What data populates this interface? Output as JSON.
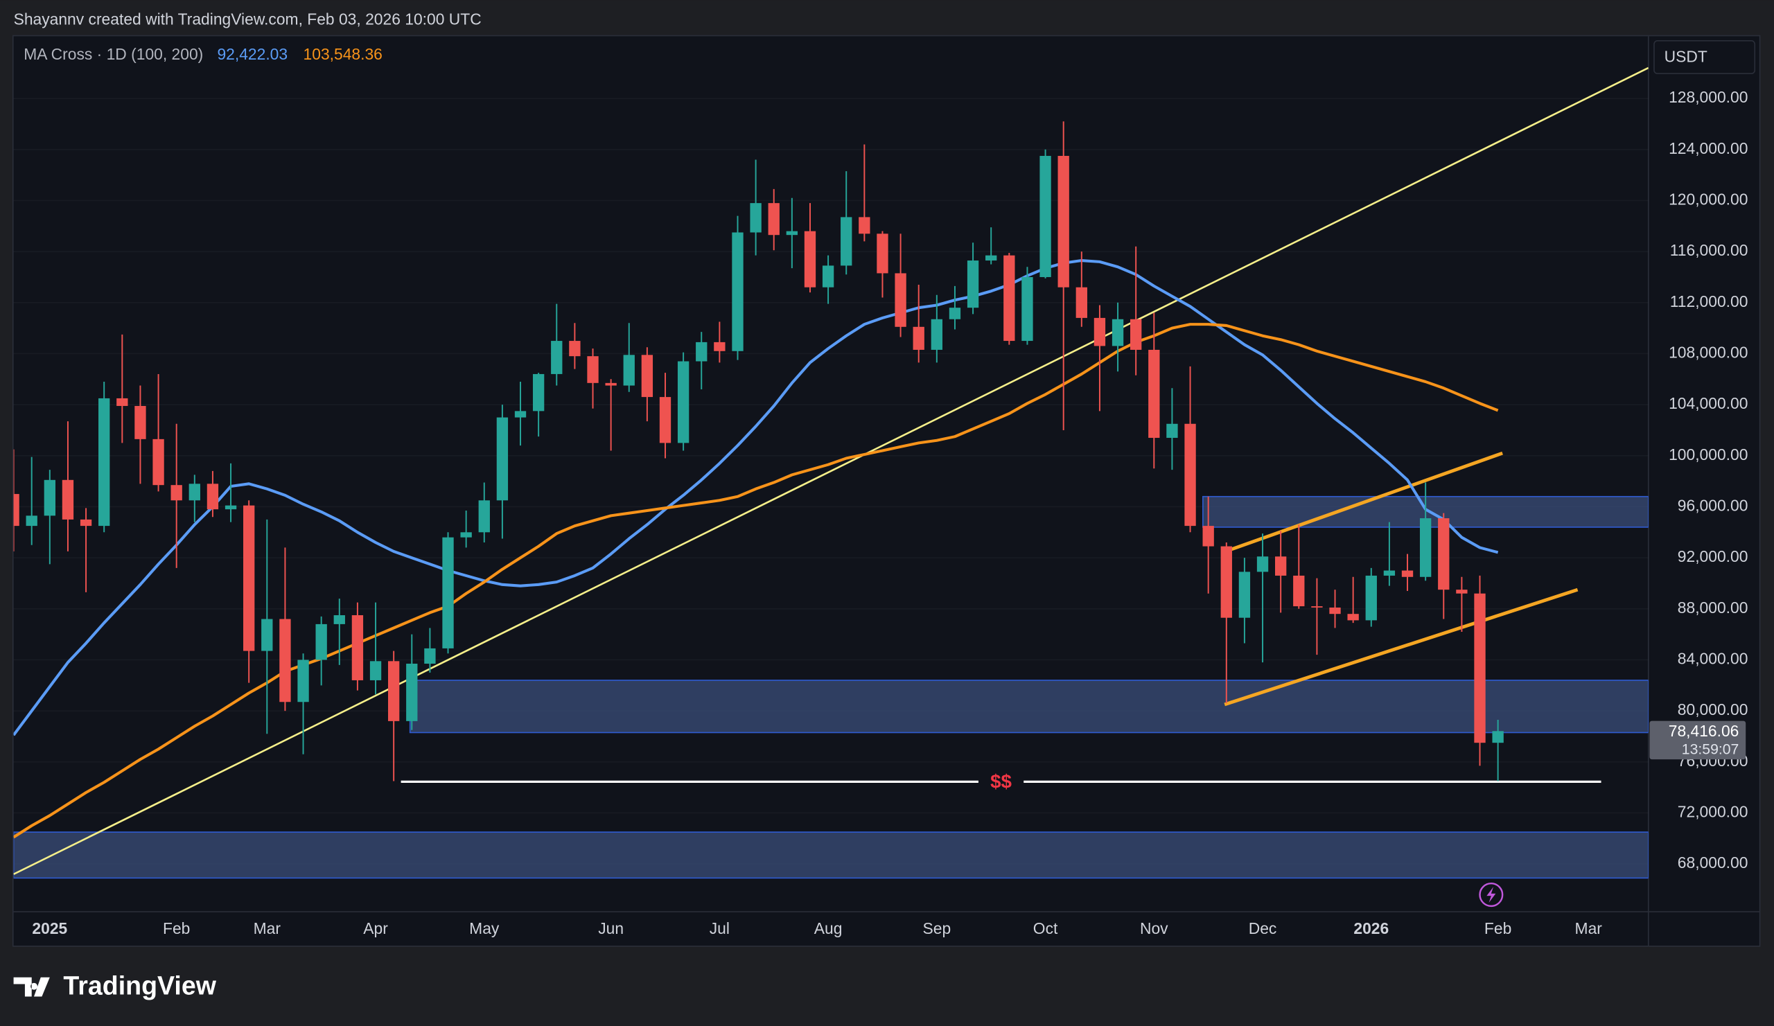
{
  "header": "Shayannv created with TradingView.com, Feb 03, 2026 10:00 UTC",
  "footer": {
    "brand": "TradingView"
  },
  "chart_data": {
    "type": "candlestick",
    "legend_title": "MA Cross · 1D (100, 200)",
    "currency": "USDT",
    "categories": [
      null,
      null,
      "2025",
      null,
      null,
      null,
      null,
      null,
      null,
      "Feb",
      null,
      null,
      null,
      null,
      "Mar",
      null,
      null,
      null,
      null,
      null,
      "Apr",
      null,
      null,
      null,
      null,
      null,
      "May",
      null,
      null,
      null,
      null,
      null,
      null,
      "Jun",
      null,
      null,
      null,
      null,
      null,
      "Jul",
      null,
      null,
      null,
      null,
      null,
      "Aug",
      null,
      null,
      null,
      null,
      null,
      "Sep",
      null,
      null,
      null,
      null,
      null,
      "Oct",
      null,
      null,
      null,
      null,
      null,
      "Nov",
      null,
      null,
      null,
      null,
      null,
      "Dec",
      null,
      null,
      null,
      null,
      null,
      "2026",
      null,
      null,
      null,
      null,
      null,
      null,
      "Feb",
      null,
      null,
      null,
      null,
      "Mar",
      null,
      null,
      null
    ],
    "open": [
      97000,
      94500,
      95300,
      98100,
      95000,
      94500,
      104500,
      103900,
      101300,
      97700,
      96500,
      97800,
      95800,
      96100,
      84700,
      87200,
      80700,
      84000,
      86800,
      87500,
      82400,
      83900,
      79200,
      83700,
      84900,
      93600,
      94000,
      96500,
      103000,
      103500,
      106400,
      109000,
      107800,
      105700,
      105500,
      107900,
      104600,
      101000,
      107400,
      108900,
      108200,
      117500,
      119800,
      117300,
      117600,
      113200,
      114900,
      118700,
      117400,
      114300,
      110100,
      108300,
      110700,
      111600,
      115300,
      115700,
      109000,
      114000,
      123500,
      113200,
      110800,
      108600,
      110700,
      108300,
      101400,
      102500,
      94500,
      92900,
      87300,
      90900,
      92100,
      90600,
      88200,
      88100,
      87600,
      87100,
      90600,
      91000,
      90500,
      95100,
      89500,
      89200,
      77500,
      null,
      null,
      null,
      null,
      null,
      null,
      null,
      null
    ],
    "high": [
      100500,
      99900,
      98900,
      102700,
      95900,
      105800,
      109500,
      105500,
      106400,
      102500,
      98500,
      98800,
      99400,
      96500,
      95000,
      92800,
      84500,
      87400,
      88800,
      88500,
      88500,
      84700,
      86000,
      86500,
      94000,
      95700,
      97900,
      104000,
      105800,
      106500,
      111900,
      110400,
      108400,
      106000,
      110400,
      108500,
      106500,
      108100,
      109700,
      110500,
      118800,
      123200,
      120900,
      120200,
      119800,
      115700,
      122300,
      124400,
      117600,
      117400,
      113400,
      112600,
      113300,
      116700,
      117900,
      115900,
      114800,
      124000,
      126200,
      116000,
      111800,
      112000,
      116400,
      111200,
      105300,
      107000,
      96800,
      93200,
      92000,
      93900,
      94100,
      94600,
      90400,
      89500,
      90500,
      91200,
      94800,
      92300,
      97900,
      95500,
      90500,
      90600,
      79300,
      null,
      null,
      null,
      null,
      null,
      null,
      null,
      null
    ],
    "low": [
      92500,
      93000,
      91500,
      92500,
      89300,
      94000,
      101000,
      97800,
      97200,
      91200,
      94800,
      95200,
      94800,
      82200,
      78200,
      80000,
      76600,
      82000,
      83600,
      81600,
      81300,
      74500,
      78500,
      83000,
      84500,
      92800,
      93200,
      93500,
      100800,
      101500,
      105500,
      106800,
      103700,
      100400,
      105000,
      102700,
      99800,
      100400,
      105200,
      107300,
      107500,
      115700,
      116100,
      114700,
      112800,
      111900,
      114200,
      116800,
      112400,
      109300,
      107300,
      107300,
      109900,
      111100,
      115000,
      108700,
      108700,
      113900,
      102000,
      110100,
      103500,
      106600,
      106300,
      99000,
      98900,
      94000,
      89200,
      80600,
      85300,
      83800,
      87700,
      88000,
      84400,
      86500,
      86900,
      86600,
      89800,
      89400,
      90200,
      87200,
      86200,
      75700,
      74500,
      null,
      null,
      null,
      null,
      null,
      null,
      null,
      null
    ],
    "close": [
      94500,
      95300,
      98100,
      95000,
      94500,
      104500,
      103900,
      101300,
      97700,
      96500,
      97800,
      95800,
      96100,
      84700,
      87200,
      80700,
      84000,
      86800,
      87500,
      82400,
      83900,
      79200,
      83700,
      84900,
      93600,
      94000,
      96500,
      103000,
      103500,
      106400,
      109000,
      107800,
      105700,
      105500,
      107900,
      104600,
      101000,
      107400,
      108900,
      108200,
      117500,
      119800,
      117300,
      117600,
      113200,
      114900,
      118700,
      117400,
      114300,
      110100,
      108300,
      110700,
      111600,
      115300,
      115700,
      109000,
      114000,
      123500,
      113200,
      110800,
      108600,
      110700,
      108300,
      101400,
      102500,
      94500,
      92900,
      87300,
      90900,
      92100,
      90600,
      88200,
      88100,
      87600,
      87100,
      90600,
      91000,
      90500,
      95100,
      89500,
      89200,
      77500,
      78416.06,
      null,
      null,
      null,
      null,
      null,
      null,
      null,
      null
    ],
    "last_price_label": "78,416.06",
    "countdown": "13:59:07",
    "up_color": "#26a69a",
    "down_color": "#ef5350",
    "overlays": [
      {
        "color": "#5b9cf6",
        "legend_label": "92,422.03",
        "values": [
          78100,
          80000,
          81900,
          83800,
          85300,
          86900,
          88400,
          89900,
          91500,
          93000,
          94600,
          96000,
          97600,
          97800,
          97400,
          96900,
          96200,
          95600,
          94900,
          94000,
          93200,
          92500,
          92000,
          91500,
          91000,
          90600,
          90200,
          89900,
          89800,
          89900,
          90100,
          90600,
          91200,
          92300,
          93500,
          94600,
          95800,
          96900,
          98100,
          99400,
          100800,
          102300,
          103900,
          105700,
          107300,
          108400,
          109400,
          110300,
          110800,
          111200,
          111600,
          111800,
          112200,
          112500,
          112900,
          113400,
          114100,
          114700,
          115100,
          115300,
          115200,
          114800,
          114200,
          113300,
          112500,
          111700,
          110700,
          109700,
          108700,
          107900,
          106700,
          105400,
          104100,
          102900,
          101800,
          100600,
          99400,
          98100,
          95800,
          95000,
          93600,
          92800,
          92422.03,
          null,
          null,
          null,
          null,
          null,
          null,
          null,
          null
        ]
      },
      {
        "color": "#f7931a",
        "legend_label": "103,548.36",
        "values": [
          70100,
          71000,
          71800,
          72700,
          73600,
          74400,
          75300,
          76200,
          77000,
          77900,
          78800,
          79600,
          80500,
          81400,
          82200,
          83100,
          83600,
          84100,
          84700,
          85300,
          85900,
          86500,
          87100,
          87700,
          88200,
          89200,
          90100,
          91100,
          92000,
          92900,
          93900,
          94500,
          94900,
          95300,
          95500,
          95700,
          95900,
          96100,
          96300,
          96500,
          96800,
          97400,
          97900,
          98500,
          98900,
          99300,
          99800,
          100100,
          100400,
          100700,
          101000,
          101200,
          101500,
          102100,
          102700,
          103300,
          104100,
          104800,
          105600,
          106400,
          107300,
          108200,
          108900,
          109400,
          110000,
          110300,
          110300,
          110200,
          109800,
          109400,
          109100,
          108700,
          108200,
          107800,
          107400,
          107000,
          106600,
          106200,
          105800,
          105300,
          104700,
          104100,
          103548.36,
          null,
          null,
          null,
          null,
          null,
          null,
          null,
          null
        ]
      }
    ],
    "ylim": [
      64261,
      132876
    ],
    "yticks": [
      {
        "value": 68000,
        "label": "68,000.00"
      },
      {
        "value": 72000,
        "label": "72,000.00"
      },
      {
        "value": 76000,
        "label": "76,000.00"
      },
      {
        "value": 80000,
        "label": "80,000.00"
      },
      {
        "value": 84000,
        "label": "84,000.00"
      },
      {
        "value": 88000,
        "label": "88,000.00"
      },
      {
        "value": 92000,
        "label": "92,000.00"
      },
      {
        "value": 96000,
        "label": "96,000.00"
      },
      {
        "value": 100000,
        "label": "100,000.00"
      },
      {
        "value": 104000,
        "label": "104,000.00"
      },
      {
        "value": 108000,
        "label": "108,000.00"
      },
      {
        "value": 112000,
        "label": "112,000.00"
      },
      {
        "value": 116000,
        "label": "116,000.00"
      },
      {
        "value": 120000,
        "label": "120,000.00"
      },
      {
        "value": 124000,
        "label": "124,000.00"
      },
      {
        "value": 128000,
        "label": "128,000.00"
      }
    ],
    "grid": true,
    "zones": [
      {
        "low": 94400,
        "high": 96800
      },
      {
        "low": 78300,
        "high": 82400
      },
      {
        "low": 66900,
        "high": 70500
      }
    ],
    "zone_color": "#3a4d7a",
    "trendlines": [
      {
        "color": "#f5ef8a",
        "y": [
          67200,
          130400
        ]
      },
      {
        "color": "#f5a623",
        "y": [
          92400,
          100200
        ]
      },
      {
        "color": "#f5a623",
        "y": [
          80500,
          89500
        ]
      }
    ],
    "level": {
      "value": 74450,
      "label": "$$",
      "color": "#ffffff",
      "label_color": "#f23645"
    }
  }
}
